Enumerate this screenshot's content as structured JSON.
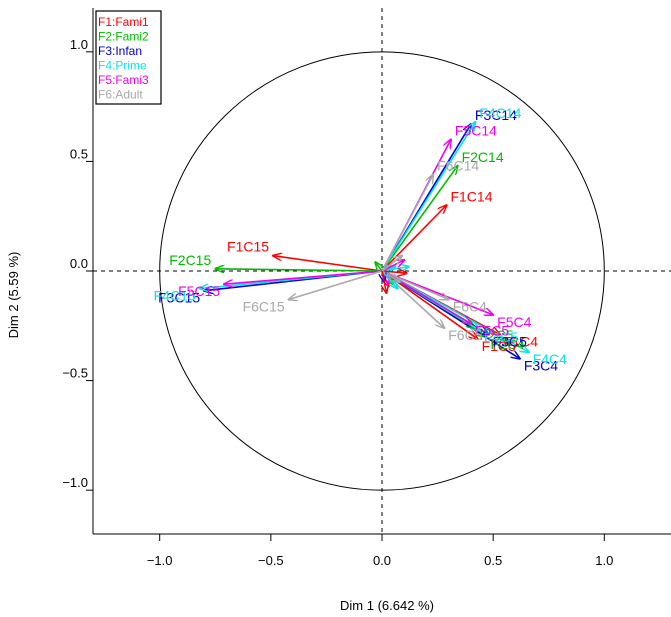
{
  "chart_data": {
    "type": "pca-variables-factor-map",
    "xlabel": "Dim 1 (6.642 %)",
    "ylabel": "Dim 2 (5.59 %)",
    "xlim": [
      -1.3,
      1.3
    ],
    "ylim": [
      -1.2,
      1.2
    ],
    "x_ticks": [
      -1.0,
      -0.5,
      0.0,
      0.5,
      1.0
    ],
    "x_tick_labels": [
      "−1.0",
      "−0.5",
      "0.0",
      "0.5",
      "1.0"
    ],
    "y_ticks": [
      -1.0,
      -0.5,
      0.0,
      0.5,
      1.0
    ],
    "y_tick_labels": [
      "−1.0",
      "−0.5",
      "0.0",
      "0.5",
      "1.0"
    ],
    "unit_circle": true,
    "grid": false,
    "legend_position": "top-left",
    "legend": [
      {
        "label": "F1:Fami1",
        "color": "#ff0000"
      },
      {
        "label": "F2:Fami2",
        "color": "#00bb00"
      },
      {
        "label": "F3:Infan",
        "color": "#0000cc"
      },
      {
        "label": "F4:Prime",
        "color": "#00e5ee"
      },
      {
        "label": "F5:Fami3",
        "color": "#ee00ee"
      },
      {
        "label": "F6:Adult",
        "color": "#a9a9a9"
      }
    ],
    "vectors": [
      {
        "label": "F1C15",
        "x": -0.49,
        "y": 0.07,
        "color": "#ff0000"
      },
      {
        "label": "F2C15",
        "x": -0.75,
        "y": 0.01,
        "color": "#00bb00"
      },
      {
        "label": "F3C15",
        "x": -0.8,
        "y": -0.09,
        "color": "#0000cc"
      },
      {
        "label": "F4C15",
        "x": -0.82,
        "y": -0.08,
        "color": "#00e5ee"
      },
      {
        "label": "F5C15",
        "x": -0.71,
        "y": -0.06,
        "color": "#ee00ee"
      },
      {
        "label": "F6C15",
        "x": -0.42,
        "y": -0.13,
        "color": "#a9a9a9"
      },
      {
        "label": "F1C14",
        "x": 0.29,
        "y": 0.3,
        "color": "#ff0000"
      },
      {
        "label": "F2C14",
        "x": 0.34,
        "y": 0.48,
        "color": "#00bb00"
      },
      {
        "label": "F3C14",
        "x": 0.4,
        "y": 0.67,
        "color": "#0000cc"
      },
      {
        "label": "F4C14",
        "x": 0.42,
        "y": 0.68,
        "color": "#00e5ee"
      },
      {
        "label": "F5C14",
        "x": 0.31,
        "y": 0.6,
        "color": "#ee00ee"
      },
      {
        "label": "F6C14",
        "x": 0.23,
        "y": 0.44,
        "color": "#a9a9a9"
      },
      {
        "label": "F1C4",
        "x": 0.53,
        "y": -0.29,
        "color": "#ff0000"
      },
      {
        "label": "F2C4",
        "x": 0.47,
        "y": -0.3,
        "color": "#00bb00"
      },
      {
        "label": "F3C4",
        "x": 0.62,
        "y": -0.4,
        "color": "#0000cc"
      },
      {
        "label": "F4C4",
        "x": 0.66,
        "y": -0.37,
        "color": "#00e5ee"
      },
      {
        "label": "F5C4",
        "x": 0.5,
        "y": -0.2,
        "color": "#ee00ee"
      },
      {
        "label": "F6C4",
        "x": 0.3,
        "y": -0.13,
        "color": "#a9a9a9"
      },
      {
        "label": "F1C5",
        "x": 0.43,
        "y": -0.31,
        "color": "#ff0000"
      },
      {
        "label": "F2C5",
        "x": 0.42,
        "y": -0.26,
        "color": "#00bb00"
      },
      {
        "label": "F3C5",
        "x": 0.48,
        "y": -0.29,
        "color": "#0000cc"
      },
      {
        "label": "F4C5",
        "x": 0.44,
        "y": -0.27,
        "color": "#00e5ee"
      },
      {
        "label": "F5C5",
        "x": 0.4,
        "y": -0.24,
        "color": "#ee00ee"
      },
      {
        "label": "F6C5",
        "x": 0.28,
        "y": -0.26,
        "color": "#a9a9a9"
      },
      {
        "label": "",
        "x": 0.06,
        "y": 0.02,
        "color": "#00e5ee"
      },
      {
        "label": "",
        "x": 0.12,
        "y": 0.02,
        "color": "#00e5ee"
      },
      {
        "label": "",
        "x": 0.11,
        "y": -0.01,
        "color": "#ff0000"
      },
      {
        "label": "",
        "x": 0.05,
        "y": -0.06,
        "color": "#00bb00"
      },
      {
        "label": "",
        "x": 0.03,
        "y": -0.07,
        "color": "#ee00ee"
      },
      {
        "label": "",
        "x": 0.08,
        "y": -0.05,
        "color": "#a9a9a9"
      },
      {
        "label": "",
        "x": 0.01,
        "y": -0.05,
        "color": "#0000cc"
      },
      {
        "label": "",
        "x": -0.03,
        "y": 0.04,
        "color": "#00bb00"
      },
      {
        "label": "",
        "x": 0.1,
        "y": 0.05,
        "color": "#ee00ee"
      },
      {
        "label": "",
        "x": 0.07,
        "y": -0.08,
        "color": "#00e5ee"
      },
      {
        "label": "",
        "x": 0.09,
        "y": 0.07,
        "color": "#a9a9a9"
      },
      {
        "label": "",
        "x": 0.02,
        "y": -0.1,
        "color": "#ff0000"
      }
    ]
  }
}
